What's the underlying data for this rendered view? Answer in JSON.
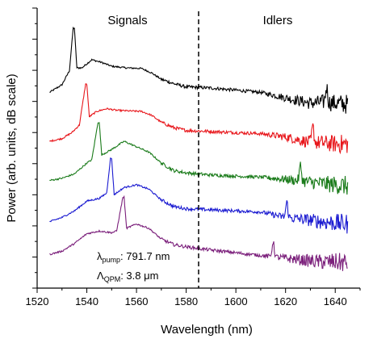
{
  "chart_data": {
    "type": "line",
    "title": "",
    "xlabel": "Wavelength (nm)",
    "ylabel": "Power (arb. units, dB scale)",
    "xlim": [
      1520,
      1650
    ],
    "x_ticks": [
      "1520",
      "1540",
      "1560",
      "1580",
      "1600",
      "1620",
      "1640"
    ],
    "y_tick_labels_shown": false,
    "grid": false,
    "divider_x": 1585,
    "regions": {
      "left": "Signals",
      "right": "Idlers"
    },
    "annotations": [
      {
        "symbol": "λ",
        "subscript": "pump",
        "text": ": 791.7 nm"
      },
      {
        "symbol": "Λ",
        "subscript": "QPM",
        "text": ": 3.8 μm"
      }
    ],
    "series": [
      {
        "color": "#000000",
        "signal_peak_nm": 1535,
        "idler_peak_nm": 1636.5,
        "x": [
          1525,
          1530,
          1533,
          1534.5,
          1535,
          1536,
          1538,
          1542,
          1546,
          1550,
          1556,
          1562,
          1566,
          1570,
          1575,
          1580,
          1590,
          1600,
          1610,
          1620,
          1630,
          1635,
          1640,
          1645
        ],
        "y": [
          0.0,
          0.14,
          0.4,
          1.18,
          1.18,
          0.45,
          0.45,
          0.6,
          0.55,
          0.48,
          0.45,
          0.44,
          0.36,
          0.24,
          0.16,
          0.1,
          0.08,
          0.04,
          0.0,
          -0.1,
          -0.2,
          -0.18,
          -0.2,
          -0.22
        ]
      },
      {
        "color": "#e8161b",
        "signal_peak_nm": 1540,
        "idler_peak_nm": 1631,
        "x": [
          1525,
          1530,
          1534,
          1537,
          1539.5,
          1540,
          1541,
          1544,
          1548,
          1552,
          1556,
          1562,
          1566,
          1570,
          1575,
          1580,
          1590,
          1600,
          1610,
          1620,
          1630,
          1635,
          1640,
          1645
        ],
        "y": [
          -0.9,
          -0.85,
          -0.74,
          -0.6,
          0.15,
          0.15,
          -0.45,
          -0.35,
          -0.3,
          -0.33,
          -0.34,
          -0.35,
          -0.42,
          -0.55,
          -0.65,
          -0.7,
          -0.72,
          -0.74,
          -0.76,
          -0.82,
          -0.92,
          -0.93,
          -0.95,
          -0.95
        ]
      },
      {
        "color": "#1a7b1a",
        "signal_peak_nm": 1545,
        "idler_peak_nm": 1626,
        "x": [
          1525,
          1530,
          1535,
          1540,
          1542,
          1544.5,
          1545,
          1546,
          1550,
          1555,
          1560,
          1565,
          1570,
          1575,
          1580,
          1590,
          1600,
          1610,
          1620,
          1630,
          1635,
          1640,
          1645
        ],
        "y": [
          -1.62,
          -1.58,
          -1.5,
          -1.3,
          -1.24,
          -0.55,
          -0.55,
          -1.15,
          -1.05,
          -0.9,
          -1.0,
          -1.1,
          -1.3,
          -1.44,
          -1.48,
          -1.52,
          -1.54,
          -1.56,
          -1.6,
          -1.65,
          -1.68,
          -1.7,
          -1.72
        ]
      },
      {
        "color": "#1b1bd1",
        "signal_peak_nm": 1550,
        "idler_peak_nm": 1620.5,
        "x": [
          1525,
          1530,
          1535,
          1540,
          1545,
          1548,
          1549.5,
          1550,
          1551,
          1555,
          1560,
          1565,
          1570,
          1575,
          1580,
          1590,
          1600,
          1610,
          1620,
          1630,
          1635,
          1640,
          1645
        ],
        "y": [
          -2.38,
          -2.3,
          -2.18,
          -2.0,
          -1.95,
          -1.85,
          -1.22,
          -1.22,
          -1.88,
          -1.75,
          -1.7,
          -1.78,
          -1.98,
          -2.1,
          -2.14,
          -2.16,
          -2.18,
          -2.2,
          -2.3,
          -2.35,
          -2.38,
          -2.4,
          -2.42
        ]
      },
      {
        "color": "#7b1f7b",
        "signal_peak_nm": 1555,
        "idler_peak_nm": 1615,
        "x": [
          1525,
          1530,
          1535,
          1540,
          1545,
          1550,
          1552,
          1554.5,
          1555,
          1556,
          1560,
          1565,
          1570,
          1575,
          1580,
          1590,
          1600,
          1610,
          1620,
          1630,
          1635,
          1640,
          1645
        ],
        "y": [
          -2.98,
          -2.92,
          -2.78,
          -2.6,
          -2.55,
          -2.58,
          -2.55,
          -1.93,
          -1.93,
          -2.5,
          -2.42,
          -2.5,
          -2.7,
          -2.8,
          -2.84,
          -2.9,
          -2.95,
          -3.0,
          -3.05,
          -3.1,
          -3.12,
          -3.12,
          -3.14
        ]
      }
    ]
  }
}
